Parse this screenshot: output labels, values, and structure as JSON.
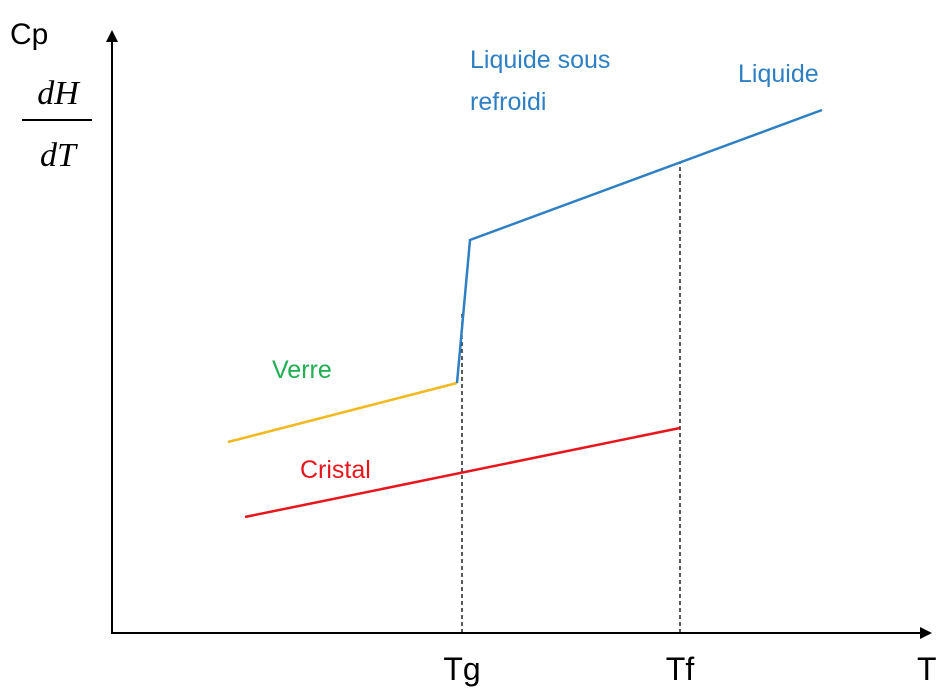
{
  "axes": {
    "y_label": "Cp",
    "y_fraction": {
      "numerator": "dH",
      "denominator": "dT"
    },
    "x_label": "T"
  },
  "curves": {
    "liquid_supercooled": [
      "Liquide sous",
      "refroidi"
    ],
    "liquid": "Liquide",
    "glass": "Verre",
    "crystal": "Cristal"
  },
  "temperatures": {
    "glass_transition": "Tg",
    "fusion": "Tf"
  }
}
